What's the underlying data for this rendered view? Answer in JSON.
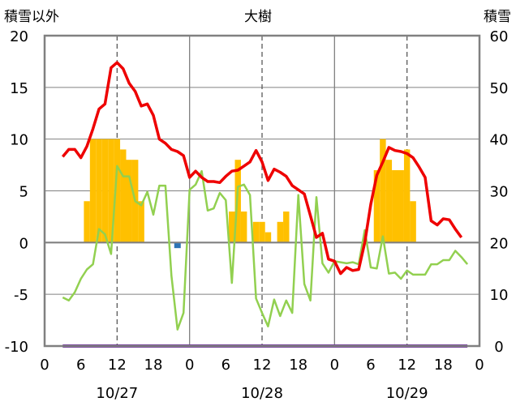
{
  "chart_data": {
    "type": "combo",
    "title": "大樹",
    "left_axis_label": "積雪以外",
    "right_axis_label": "積雪",
    "left_ylim": [
      -10,
      20
    ],
    "left_yticks": [
      "20",
      "15",
      "10",
      "5",
      "0",
      "-5",
      "-10"
    ],
    "right_ylim": [
      0,
      60
    ],
    "right_yticks": [
      "60",
      "50",
      "40",
      "30",
      "20",
      "10",
      "0"
    ],
    "xlim": [
      0,
      72
    ],
    "xtick_labels": [
      "0",
      "6",
      "12",
      "18",
      "0",
      "6",
      "12",
      "18",
      "0",
      "6",
      "12",
      "18",
      "0"
    ],
    "date_labels": [
      {
        "label": "10/27",
        "x": 12
      },
      {
        "label": "10/28",
        "x": 36
      },
      {
        "label": "10/29",
        "x": 60
      }
    ],
    "grid": true,
    "colors": {
      "bars": "#ffc000",
      "red_line": "#ee0000",
      "green_line": "#92d050",
      "purple_line": "#7030a0",
      "blue_marker": "#2e75b6",
      "zero_line": "#808080",
      "frame": "#808080"
    },
    "bars": {
      "axis": "left",
      "width_hours": 1,
      "points": [
        {
          "x": 7,
          "y": 4
        },
        {
          "x": 8,
          "y": 10
        },
        {
          "x": 9,
          "y": 10
        },
        {
          "x": 10,
          "y": 10
        },
        {
          "x": 11,
          "y": 10
        },
        {
          "x": 12,
          "y": 10
        },
        {
          "x": 13,
          "y": 9
        },
        {
          "x": 14,
          "y": 8
        },
        {
          "x": 15,
          "y": 8
        },
        {
          "x": 16,
          "y": 4
        },
        {
          "x": 31,
          "y": 3
        },
        {
          "x": 32,
          "y": 8
        },
        {
          "x": 33,
          "y": 3
        },
        {
          "x": 35,
          "y": 2
        },
        {
          "x": 36,
          "y": 2
        },
        {
          "x": 37,
          "y": 1
        },
        {
          "x": 39,
          "y": 2
        },
        {
          "x": 40,
          "y": 3
        },
        {
          "x": 55,
          "y": 7
        },
        {
          "x": 56,
          "y": 10
        },
        {
          "x": 57,
          "y": 8
        },
        {
          "x": 58,
          "y": 7
        },
        {
          "x": 59,
          "y": 7
        },
        {
          "x": 60,
          "y": 9
        },
        {
          "x": 61,
          "y": 4
        }
      ]
    },
    "red_line": {
      "axis": "left",
      "points": [
        [
          3,
          8.3
        ],
        [
          4,
          9.0
        ],
        [
          5,
          9.0
        ],
        [
          6,
          8.2
        ],
        [
          7,
          9.3
        ],
        [
          8,
          11.0
        ],
        [
          9,
          12.9
        ],
        [
          10,
          13.4
        ],
        [
          11,
          16.9
        ],
        [
          12,
          17.4
        ],
        [
          13,
          16.8
        ],
        [
          14,
          15.4
        ],
        [
          15,
          14.6
        ],
        [
          16,
          13.2
        ],
        [
          17,
          13.4
        ],
        [
          18,
          12.3
        ],
        [
          19,
          10.0
        ],
        [
          20,
          9.6
        ],
        [
          21,
          9.0
        ],
        [
          22,
          8.8
        ],
        [
          23,
          8.4
        ],
        [
          24,
          6.3
        ],
        [
          25,
          6.9
        ],
        [
          26,
          6.3
        ],
        [
          27,
          5.9
        ],
        [
          28,
          5.9
        ],
        [
          29,
          5.8
        ],
        [
          30,
          6.4
        ],
        [
          31,
          6.9
        ],
        [
          32,
          7.0
        ],
        [
          33,
          7.4
        ],
        [
          34,
          7.8
        ],
        [
          35,
          8.9
        ],
        [
          36,
          7.8
        ],
        [
          37,
          6.0
        ],
        [
          38,
          7.1
        ],
        [
          39,
          6.8
        ],
        [
          40,
          6.4
        ],
        [
          41,
          5.5
        ],
        [
          42,
          5.1
        ],
        [
          43,
          4.7
        ],
        [
          44,
          2.6
        ],
        [
          45,
          0.5
        ],
        [
          46,
          0.9
        ],
        [
          47,
          -1.6
        ],
        [
          48,
          -1.8
        ],
        [
          49,
          -3.0
        ],
        [
          50,
          -2.4
        ],
        [
          51,
          -2.7
        ],
        [
          52,
          -2.6
        ],
        [
          53,
          0.0
        ],
        [
          54,
          3.7
        ],
        [
          55,
          6.5
        ],
        [
          56,
          7.8
        ],
        [
          57,
          9.2
        ],
        [
          58,
          8.9
        ],
        [
          59,
          8.8
        ],
        [
          60,
          8.6
        ],
        [
          61,
          8.2
        ],
        [
          62,
          7.3
        ],
        [
          63,
          6.3
        ],
        [
          64,
          2.1
        ],
        [
          65,
          1.7
        ],
        [
          66,
          2.3
        ],
        [
          67,
          2.2
        ],
        [
          68,
          1.3
        ],
        [
          69,
          0.5
        ]
      ]
    },
    "green_line": {
      "axis": "left",
      "points": [
        [
          3,
          -5.3
        ],
        [
          4,
          -5.6
        ],
        [
          5,
          -4.8
        ],
        [
          6,
          -3.5
        ],
        [
          7,
          -2.6
        ],
        [
          8,
          -2.1
        ],
        [
          9,
          1.3
        ],
        [
          10,
          0.8
        ],
        [
          11,
          -1.1
        ],
        [
          12,
          7.4
        ],
        [
          13,
          6.4
        ],
        [
          14,
          6.4
        ],
        [
          15,
          4.0
        ],
        [
          16,
          3.6
        ],
        [
          17,
          4.9
        ],
        [
          18,
          2.7
        ],
        [
          19,
          5.5
        ],
        [
          20,
          5.5
        ],
        [
          21,
          -3.2
        ],
        [
          22,
          -8.4
        ],
        [
          23,
          -6.8
        ],
        [
          24,
          5.1
        ],
        [
          25,
          5.6
        ],
        [
          26,
          6.9
        ],
        [
          27,
          3.1
        ],
        [
          28,
          3.3
        ],
        [
          29,
          4.8
        ],
        [
          30,
          4.1
        ],
        [
          31,
          -3.9
        ],
        [
          32,
          5.4
        ],
        [
          33,
          5.6
        ],
        [
          34,
          4.6
        ],
        [
          35,
          -5.4
        ],
        [
          36,
          -6.8
        ],
        [
          37,
          -8.1
        ],
        [
          38,
          -5.5
        ],
        [
          39,
          -7.1
        ],
        [
          40,
          -5.6
        ],
        [
          41,
          -6.8
        ],
        [
          42,
          4.6
        ],
        [
          43,
          -4.0
        ],
        [
          44,
          -5.6
        ],
        [
          45,
          4.4
        ],
        [
          46,
          -2.0
        ],
        [
          47,
          -2.9
        ],
        [
          48,
          -1.8
        ],
        [
          49,
          -1.9
        ],
        [
          50,
          -2.0
        ],
        [
          51,
          -1.9
        ],
        [
          52,
          -2.1
        ],
        [
          53,
          1.2
        ],
        [
          54,
          -2.4
        ],
        [
          55,
          -2.5
        ],
        [
          56,
          0.6
        ],
        [
          57,
          -3.0
        ],
        [
          58,
          -2.9
        ],
        [
          59,
          -3.5
        ],
        [
          60,
          -2.7
        ],
        [
          61,
          -3.1
        ],
        [
          62,
          -3.1
        ],
        [
          63,
          -3.1
        ],
        [
          64,
          -2.1
        ],
        [
          65,
          -2.1
        ],
        [
          66,
          -1.7
        ],
        [
          67,
          -1.7
        ],
        [
          68,
          -0.8
        ],
        [
          69,
          -1.4
        ],
        [
          70,
          -2.1
        ]
      ]
    },
    "purple_line": {
      "axis": "left",
      "points": [
        [
          3,
          -10
        ],
        [
          70,
          -10
        ]
      ]
    },
    "blue_marker": {
      "axis": "left",
      "points": [
        [
          22,
          -0.3
        ]
      ]
    }
  }
}
